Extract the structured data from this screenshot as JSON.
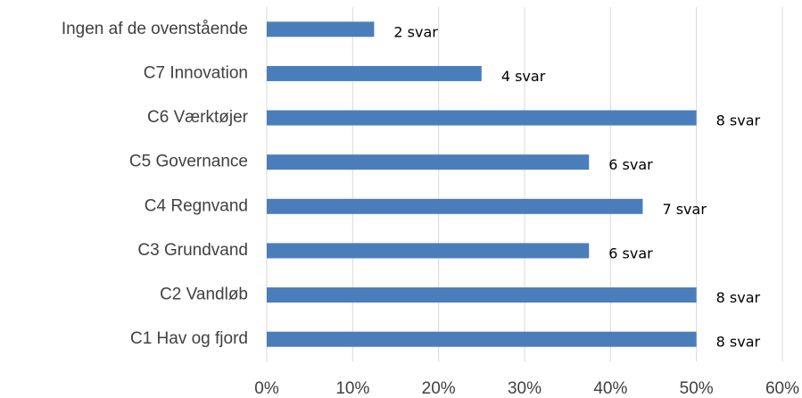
{
  "chart_data": {
    "type": "bar",
    "orientation": "horizontal",
    "categories": [
      "Ingen af de ovenstående",
      "C7 Innovation",
      "C6 Værktøjer",
      "C5 Governance",
      "C4 Regnvand",
      "C3 Grundvand",
      "C2 Vandløb",
      "C1 Hav og fjord"
    ],
    "values": [
      12.5,
      25,
      50,
      37.5,
      43.75,
      37.5,
      50,
      50
    ],
    "value_labels": [
      "2 svar",
      "4 svar",
      "8 svar",
      "6 svar",
      "7 svar",
      "6 svar",
      "8 svar",
      "8 svar"
    ],
    "color": "#4a7ebb",
    "xlim": [
      0,
      60
    ],
    "xticks": [
      {
        "value": 0,
        "label": "0%"
      },
      {
        "value": 10,
        "label": "10%"
      },
      {
        "value": 20,
        "label": "20%"
      },
      {
        "value": 30,
        "label": "30%"
      },
      {
        "value": 40,
        "label": "40%"
      },
      {
        "value": 50,
        "label": "50%"
      },
      {
        "value": 60,
        "label": "60%"
      }
    ],
    "grid": true
  }
}
